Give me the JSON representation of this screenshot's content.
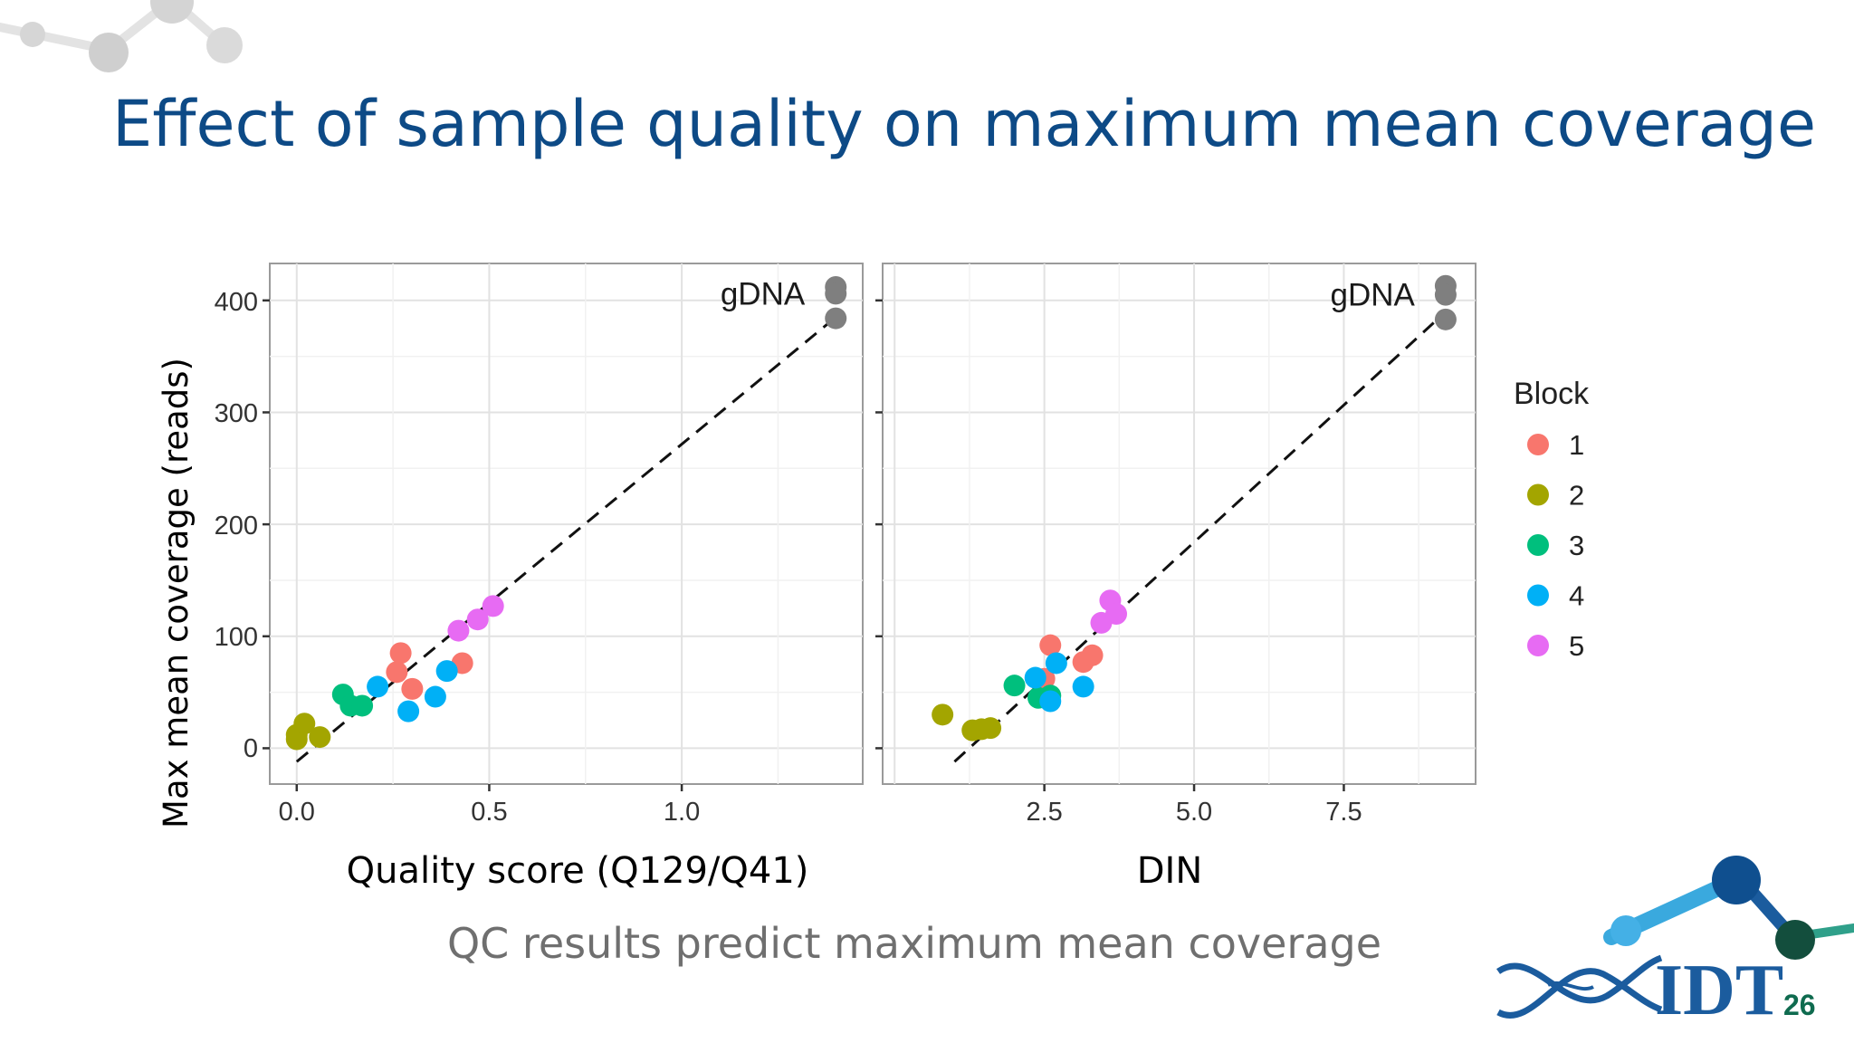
{
  "slide": {
    "title": "Effect of sample quality on maximum mean coverage",
    "caption": "QC results predict maximum mean coverage",
    "page_number": "26",
    "logo_text": "IDT"
  },
  "colors": {
    "title": "#0d4a86",
    "caption": "#6f6f6f",
    "block_1": "#f8766d",
    "block_2": "#a3a500",
    "block_3": "#00bf7d",
    "block_4": "#00b0f6",
    "block_5": "#e76bf3",
    "gdna": "#7f7f7f"
  },
  "chart_data": {
    "type": "scatter",
    "ylabel": "Max mean coverage (reads)",
    "grid": true,
    "legend": {
      "title": "Block",
      "position": "right",
      "entries": [
        "1",
        "2",
        "3",
        "4",
        "5"
      ]
    },
    "y_ticks": [
      "0",
      "100",
      "200",
      "300",
      "400"
    ],
    "panels": [
      {
        "xlabel": "Quality score (Q129/Q41)",
        "xlim": [
          -0.07,
          1.47
        ],
        "ylim": [
          -32,
          433
        ],
        "x_ticks": [
          0.0,
          0.5,
          1.0
        ],
        "x_tick_labels": [
          "0.0",
          "0.5",
          "1.0"
        ],
        "annotation": "gDNA",
        "reference_line": [
          [
            0.0,
            -12
          ],
          [
            1.4,
            385
          ]
        ],
        "series": [
          {
            "name": "1",
            "points": [
              [
                0.26,
                68
              ],
              [
                0.27,
                85
              ],
              [
                0.3,
                53
              ],
              [
                0.43,
                76
              ]
            ]
          },
          {
            "name": "2",
            "points": [
              [
                0.0,
                8
              ],
              [
                0.0,
                12
              ],
              [
                0.02,
                22
              ],
              [
                0.06,
                10
              ]
            ]
          },
          {
            "name": "3",
            "points": [
              [
                0.12,
                48
              ],
              [
                0.14,
                38
              ],
              [
                0.17,
                38
              ]
            ]
          },
          {
            "name": "4",
            "points": [
              [
                0.21,
                55
              ],
              [
                0.29,
                33
              ],
              [
                0.36,
                46
              ],
              [
                0.39,
                69
              ]
            ]
          },
          {
            "name": "5",
            "points": [
              [
                0.42,
                105
              ],
              [
                0.47,
                115
              ],
              [
                0.51,
                127
              ]
            ]
          },
          {
            "name": "gDNA",
            "points": [
              [
                1.4,
                412
              ],
              [
                1.4,
                406
              ],
              [
                1.4,
                384
              ]
            ]
          }
        ]
      },
      {
        "xlabel": "DIN",
        "xlim": [
          -0.2,
          9.7
        ],
        "ylim": [
          -32,
          433
        ],
        "x_ticks": [
          2.5,
          5.0,
          7.5
        ],
        "x_tick_labels": [
          "2.5",
          "5.0",
          "7.5"
        ],
        "annotation": "gDNA",
        "reference_line": [
          [
            1.0,
            -12
          ],
          [
            9.0,
            380
          ]
        ],
        "series": [
          {
            "name": "1",
            "points": [
              [
                2.5,
                62
              ],
              [
                2.6,
                92
              ],
              [
                3.15,
                77
              ],
              [
                3.3,
                83
              ]
            ]
          },
          {
            "name": "2",
            "points": [
              [
                0.8,
                30
              ],
              [
                1.3,
                16
              ],
              [
                1.45,
                17
              ],
              [
                1.6,
                18
              ]
            ]
          },
          {
            "name": "3",
            "points": [
              [
                2.0,
                56
              ],
              [
                2.4,
                45
              ],
              [
                2.6,
                47
              ]
            ]
          },
          {
            "name": "4",
            "points": [
              [
                2.35,
                63
              ],
              [
                2.6,
                42
              ],
              [
                2.7,
                76
              ],
              [
                3.15,
                55
              ]
            ]
          },
          {
            "name": "5",
            "points": [
              [
                3.45,
                112
              ],
              [
                3.6,
                132
              ],
              [
                3.7,
                120
              ]
            ]
          },
          {
            "name": "gDNA",
            "points": [
              [
                9.2,
                413
              ],
              [
                9.2,
                405
              ],
              [
                9.2,
                383
              ]
            ]
          }
        ]
      }
    ]
  }
}
